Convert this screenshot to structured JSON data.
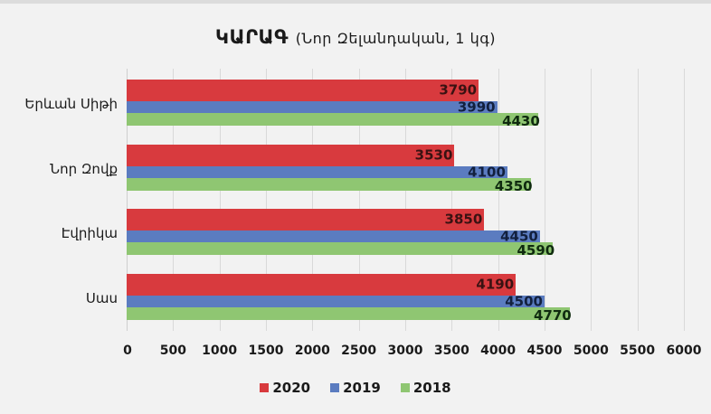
{
  "chart_data": {
    "type": "bar",
    "orientation": "horizontal",
    "title": "ԿԱՐԱԳ",
    "subtitle": "(Նոր Զելանդական, 1 կգ)",
    "xlabel": "",
    "ylabel": "",
    "categories": [
      "Երևան Սիթի",
      "Նոր Զովք",
      "Էվրիկա",
      "Սաս"
    ],
    "series": [
      {
        "name": "2020",
        "color": "#d83a3e",
        "values": [
          3790,
          3530,
          3850,
          4190
        ]
      },
      {
        "name": "2019",
        "color": "#5b7cc0",
        "values": [
          3990,
          4100,
          4450,
          4500
        ]
      },
      {
        "name": "2018",
        "color": "#8fc672",
        "values": [
          4430,
          4350,
          4590,
          4770
        ]
      }
    ],
    "xlim": [
      0,
      6000
    ],
    "xticks": [
      "0",
      "500",
      "1000",
      "1500",
      "2000",
      "2500",
      "3000",
      "3500",
      "4000",
      "4500",
      "5000",
      "5500",
      "6000"
    ],
    "grid": true,
    "legend_position": "bottom",
    "data_labels": true
  }
}
